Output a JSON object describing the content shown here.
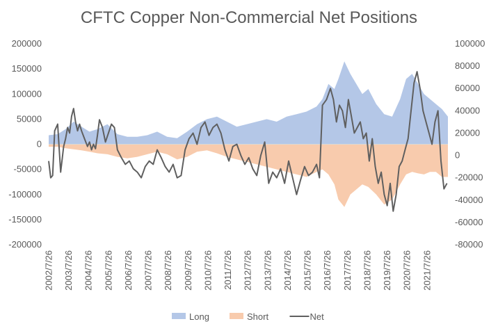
{
  "chart_data": {
    "type": "area",
    "title": "CFTC Copper Non-Commercial Net Positions",
    "x_tick_labels": [
      "2002/7/26",
      "2003/7/26",
      "2004/7/26",
      "2005/7/26",
      "2006/7/26",
      "2007/7/26",
      "2008/7/26",
      "2009/7/26",
      "2010/7/26",
      "2011/7/26",
      "2012/7/26",
      "2013/7/26",
      "2014/7/26",
      "2015/7/26",
      "2016/7/26",
      "2017/7/26",
      "2018/7/26",
      "2019/7/26",
      "2020/7/26",
      "2021/7/26"
    ],
    "x_range": [
      2002.55,
      2022.6
    ],
    "y_left": {
      "min": -200000,
      "max": 200000,
      "step": 50000,
      "tick_labels": [
        "200000",
        "150000",
        "100000",
        "50000",
        "0",
        "-50000",
        "-100000",
        "-150000",
        "-200000"
      ]
    },
    "y_right": {
      "min": -80000,
      "max": 100000,
      "step": 20000,
      "tick_labels": [
        "100000",
        "80000",
        "60000",
        "40000",
        "20000",
        "0",
        "-20000",
        "-40000",
        "-60000",
        "-80000"
      ]
    },
    "grid": false,
    "legend_position": "bottom",
    "series": [
      {
        "name": "Long",
        "axis": "left",
        "kind": "area",
        "color": "#b4c7e7",
        "x": [
          2002.55,
          2003.0,
          2003.4,
          2003.8,
          2004.2,
          2004.6,
          2005.0,
          2005.5,
          2006.0,
          2006.5,
          2007.0,
          2007.5,
          2008.0,
          2008.5,
          2009.0,
          2009.5,
          2010.0,
          2010.5,
          2011.0,
          2011.5,
          2012.0,
          2012.5,
          2013.0,
          2013.5,
          2014.0,
          2014.5,
          2015.0,
          2015.5,
          2016.0,
          2016.3,
          2016.6,
          2016.9,
          2017.1,
          2017.4,
          2017.7,
          2018.0,
          2018.3,
          2018.6,
          2019.0,
          2019.4,
          2019.8,
          2020.2,
          2020.5,
          2020.8,
          2021.1,
          2021.4,
          2021.7,
          2022.0,
          2022.3,
          2022.6
        ],
        "values": [
          18000,
          20000,
          30000,
          45000,
          35000,
          25000,
          30000,
          40000,
          20000,
          15000,
          15000,
          18000,
          25000,
          15000,
          12000,
          25000,
          40000,
          50000,
          55000,
          45000,
          35000,
          40000,
          45000,
          50000,
          45000,
          55000,
          60000,
          65000,
          75000,
          90000,
          120000,
          110000,
          130000,
          165000,
          140000,
          120000,
          100000,
          110000,
          80000,
          60000,
          55000,
          90000,
          130000,
          140000,
          120000,
          100000,
          90000,
          80000,
          70000,
          55000
        ]
      },
      {
        "name": "Short",
        "axis": "left",
        "kind": "area",
        "color": "#f8cbad",
        "x": [
          2002.55,
          2003.0,
          2003.4,
          2003.8,
          2004.2,
          2004.6,
          2005.0,
          2005.5,
          2006.0,
          2006.5,
          2007.0,
          2007.5,
          2008.0,
          2008.5,
          2009.0,
          2009.5,
          2010.0,
          2010.5,
          2011.0,
          2011.5,
          2012.0,
          2012.5,
          2013.0,
          2013.5,
          2014.0,
          2014.5,
          2015.0,
          2015.5,
          2016.0,
          2016.3,
          2016.6,
          2016.9,
          2017.1,
          2017.4,
          2017.7,
          2018.0,
          2018.3,
          2018.6,
          2019.0,
          2019.4,
          2019.8,
          2020.2,
          2020.5,
          2020.8,
          2021.1,
          2021.4,
          2021.7,
          2022.0,
          2022.3,
          2022.6
        ],
        "values": [
          -5000,
          -5000,
          -8000,
          -10000,
          -12000,
          -15000,
          -18000,
          -20000,
          -25000,
          -28000,
          -25000,
          -20000,
          -15000,
          -20000,
          -30000,
          -25000,
          -15000,
          -12000,
          -18000,
          -25000,
          -30000,
          -35000,
          -40000,
          -45000,
          -50000,
          -55000,
          -60000,
          -65000,
          -55000,
          -50000,
          -60000,
          -80000,
          -110000,
          -125000,
          -100000,
          -90000,
          -80000,
          -85000,
          -100000,
          -120000,
          -110000,
          -80000,
          -60000,
          -55000,
          -58000,
          -60000,
          -55000,
          -55000,
          -65000,
          -65000
        ]
      },
      {
        "name": "Net",
        "axis": "right",
        "kind": "line",
        "color": "#5f5f5f",
        "x": [
          2002.55,
          2002.65,
          2002.75,
          2002.85,
          2003.0,
          2003.15,
          2003.3,
          2003.4,
          2003.5,
          2003.6,
          2003.7,
          2003.8,
          2003.9,
          2004.0,
          2004.1,
          2004.2,
          2004.35,
          2004.5,
          2004.6,
          2004.7,
          2004.8,
          2004.9,
          2005.0,
          2005.1,
          2005.25,
          2005.4,
          2005.55,
          2005.7,
          2005.85,
          2006.0,
          2006.2,
          2006.4,
          2006.6,
          2006.8,
          2007.0,
          2007.2,
          2007.4,
          2007.6,
          2007.8,
          2008.0,
          2008.2,
          2008.4,
          2008.6,
          2008.8,
          2009.0,
          2009.2,
          2009.4,
          2009.6,
          2009.8,
          2010.0,
          2010.2,
          2010.4,
          2010.6,
          2010.8,
          2011.0,
          2011.2,
          2011.4,
          2011.6,
          2011.8,
          2012.0,
          2012.2,
          2012.4,
          2012.6,
          2012.8,
          2013.0,
          2013.2,
          2013.4,
          2013.6,
          2013.8,
          2014.0,
          2014.2,
          2014.4,
          2014.6,
          2014.8,
          2015.0,
          2015.2,
          2015.4,
          2015.6,
          2015.8,
          2016.0,
          2016.15,
          2016.3,
          2016.5,
          2016.7,
          2016.85,
          2017.0,
          2017.15,
          2017.3,
          2017.45,
          2017.6,
          2017.75,
          2017.9,
          2018.05,
          2018.2,
          2018.35,
          2018.5,
          2018.65,
          2018.8,
          2018.95,
          2019.1,
          2019.25,
          2019.4,
          2019.55,
          2019.7,
          2019.85,
          2020.0,
          2020.15,
          2020.3,
          2020.45,
          2020.6,
          2020.75,
          2020.9,
          2021.05,
          2021.2,
          2021.35,
          2021.5,
          2021.65,
          2021.8,
          2021.95,
          2022.1,
          2022.25,
          2022.4,
          2022.55
        ],
        "values": [
          -5000,
          -20000,
          -18000,
          22000,
          28000,
          -15000,
          8000,
          15000,
          25000,
          20000,
          35000,
          42000,
          30000,
          22000,
          28000,
          22000,
          15000,
          8000,
          12000,
          5000,
          10000,
          6000,
          18000,
          32000,
          25000,
          12000,
          20000,
          28000,
          25000,
          5000,
          -2000,
          -8000,
          -5000,
          -12000,
          -15000,
          -20000,
          -10000,
          -5000,
          -8000,
          5000,
          -2000,
          -10000,
          -15000,
          -8000,
          -20000,
          -18000,
          5000,
          15000,
          20000,
          10000,
          25000,
          30000,
          18000,
          25000,
          28000,
          20000,
          5000,
          -5000,
          8000,
          10000,
          0,
          -8000,
          -2000,
          -12000,
          -18000,
          0,
          12000,
          -25000,
          -15000,
          -20000,
          -12000,
          -25000,
          -5000,
          -20000,
          -35000,
          -22000,
          -10000,
          -18000,
          -15000,
          -8000,
          -20000,
          45000,
          50000,
          60000,
          50000,
          30000,
          45000,
          40000,
          25000,
          50000,
          35000,
          20000,
          25000,
          30000,
          15000,
          20000,
          -5000,
          15000,
          -10000,
          -25000,
          -15000,
          -35000,
          -45000,
          -25000,
          -50000,
          -35000,
          -10000,
          -5000,
          5000,
          15000,
          40000,
          65000,
          75000,
          60000,
          40000,
          30000,
          20000,
          10000,
          30000,
          40000,
          -5000,
          -30000,
          -25000
        ]
      }
    ]
  }
}
